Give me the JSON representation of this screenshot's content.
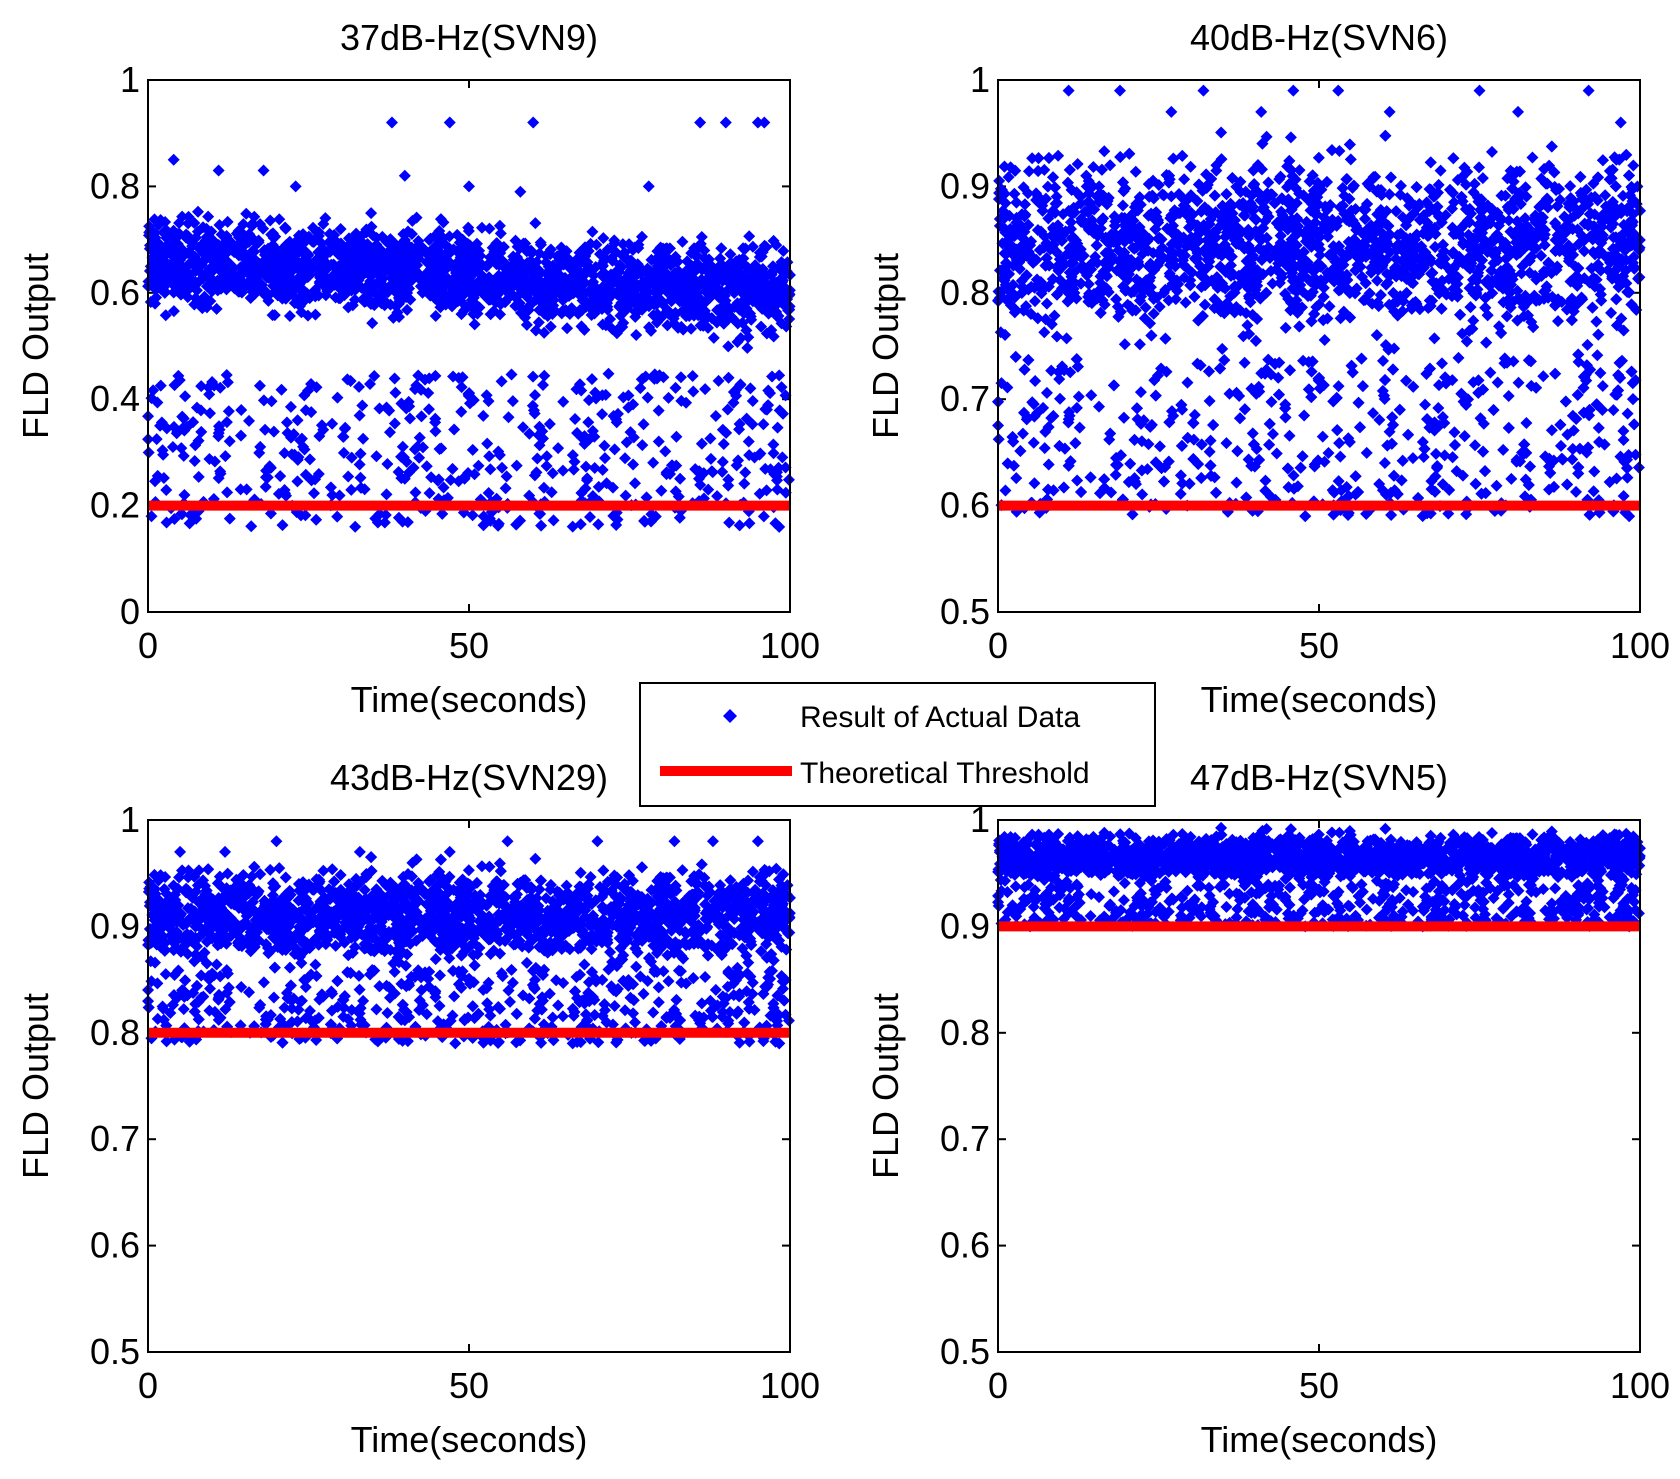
{
  "figure_layout": "2x2 grid of scatter plots with shared legend",
  "colors": {
    "data": "#0000ff",
    "threshold": "#ff0000",
    "axes": "#000000",
    "background": "#ffffff"
  },
  "legend": {
    "placement": "center",
    "entries": [
      {
        "label": "Result of Actual Data",
        "marker": "diamond-icon",
        "color": "#0000ff"
      },
      {
        "label": "Theoretical Threshold",
        "marker": "line-icon",
        "color": "#ff0000"
      }
    ]
  },
  "chart_data": [
    {
      "type": "scatter",
      "title": "37dB-Hz(SVN9)",
      "xlabel": "Time(seconds)",
      "ylabel": "FLD Output",
      "xlim": [
        0,
        100
      ],
      "ylim": [
        0,
        1
      ],
      "xticks": [
        0,
        50,
        100
      ],
      "xtick_labels": [
        "0",
        "50",
        "100"
      ],
      "yticks": [
        0,
        0.2,
        0.4,
        0.6,
        0.8,
        1
      ],
      "ytick_labels": [
        "0",
        "0.2",
        "0.4",
        "0.6",
        "0.8",
        "1"
      ],
      "grid": false,
      "threshold": 0.2,
      "band": {
        "start": [
          0.55,
          0.78
        ],
        "end": [
          0.48,
          0.72
        ]
      },
      "outlier_range": [
        0.16,
        0.45
      ],
      "outliers": [
        [
          38,
          0.92
        ],
        [
          47,
          0.92
        ],
        [
          60,
          0.92
        ],
        [
          86,
          0.92
        ],
        [
          90,
          0.92
        ],
        [
          95,
          0.92
        ],
        [
          96,
          0.92
        ],
        [
          4,
          0.85
        ],
        [
          11,
          0.83
        ],
        [
          18,
          0.83
        ],
        [
          23,
          0.8
        ],
        [
          40,
          0.82
        ],
        [
          50,
          0.8
        ],
        [
          58,
          0.79
        ],
        [
          78,
          0.8
        ]
      ],
      "series": [
        {
          "name": "Result of Actual Data",
          "kind": "scatter",
          "points": 2600
        },
        {
          "name": "Theoretical Threshold",
          "kind": "line",
          "x": [
            0,
            100
          ],
          "y": [
            0.2,
            0.2
          ]
        }
      ]
    },
    {
      "type": "scatter",
      "title": "40dB-Hz(SVN6)",
      "xlabel": "Time(seconds)",
      "ylabel": "FLD Output",
      "xlim": [
        0,
        100
      ],
      "ylim": [
        0.5,
        1
      ],
      "xticks": [
        0,
        50,
        100
      ],
      "xtick_labels": [
        "0",
        "50",
        "100"
      ],
      "yticks": [
        0.5,
        0.6,
        0.7,
        0.8,
        0.9,
        1
      ],
      "ytick_labels": [
        "0.5",
        "0.6",
        "0.7",
        "0.8",
        "0.9",
        "1"
      ],
      "grid": false,
      "threshold": 0.6,
      "band": {
        "start": [
          0.73,
          0.96
        ],
        "end": [
          0.73,
          0.96
        ]
      },
      "outlier_range": [
        0.59,
        0.74
      ],
      "outliers": [
        [
          11,
          0.99
        ],
        [
          19,
          0.99
        ],
        [
          32,
          0.99
        ],
        [
          46,
          0.99
        ],
        [
          53,
          0.99
        ],
        [
          75,
          0.99
        ],
        [
          92,
          0.99
        ],
        [
          27,
          0.97
        ],
        [
          41,
          0.97
        ],
        [
          61,
          0.97
        ],
        [
          81,
          0.97
        ],
        [
          97,
          0.96
        ]
      ],
      "series": [
        {
          "name": "Result of Actual Data",
          "kind": "scatter",
          "points": 3400
        },
        {
          "name": "Theoretical Threshold",
          "kind": "line",
          "x": [
            0,
            100
          ],
          "y": [
            0.6,
            0.6
          ]
        }
      ]
    },
    {
      "type": "scatter",
      "title": "43dB-Hz(SVN29)",
      "xlabel": "Time(seconds)",
      "ylabel": "FLD Output",
      "xlim": [
        0,
        100
      ],
      "ylim": [
        0.5,
        1
      ],
      "xticks": [
        0,
        50,
        100
      ],
      "xtick_labels": [
        "0",
        "50",
        "100"
      ],
      "yticks": [
        0.5,
        0.6,
        0.7,
        0.8,
        0.9,
        1
      ],
      "ytick_labels": [
        "0.5",
        "0.6",
        "0.7",
        "0.8",
        "0.9",
        "1"
      ],
      "grid": false,
      "threshold": 0.8,
      "band": {
        "start": [
          0.85,
          0.97
        ],
        "end": [
          0.85,
          0.97
        ]
      },
      "outlier_range": [
        0.79,
        0.86
      ],
      "outliers": [
        [
          5,
          0.97
        ],
        [
          12,
          0.97
        ],
        [
          20,
          0.98
        ],
        [
          33,
          0.97
        ],
        [
          47,
          0.97
        ],
        [
          56,
          0.98
        ],
        [
          70,
          0.98
        ],
        [
          82,
          0.98
        ],
        [
          88,
          0.98
        ],
        [
          95,
          0.98
        ]
      ],
      "series": [
        {
          "name": "Result of Actual Data",
          "kind": "scatter",
          "points": 2800
        },
        {
          "name": "Theoretical Threshold",
          "kind": "line",
          "x": [
            0,
            100
          ],
          "y": [
            0.8,
            0.8
          ]
        }
      ]
    },
    {
      "type": "scatter",
      "title": "47dB-Hz(SVN5)",
      "xlabel": "Time(seconds)",
      "ylabel": "FLD Output",
      "xlim": [
        0,
        100
      ],
      "ylim": [
        0.5,
        1
      ],
      "xticks": [
        0,
        50,
        100
      ],
      "xtick_labels": [
        "0",
        "50",
        "100"
      ],
      "yticks": [
        0.5,
        0.6,
        0.7,
        0.8,
        0.9,
        1
      ],
      "ytick_labels": [
        "0.5",
        "0.6",
        "0.7",
        "0.8",
        "0.9",
        "1"
      ],
      "grid": false,
      "threshold": 0.9,
      "band": {
        "start": [
          0.935,
          0.995
        ],
        "end": [
          0.935,
          0.995
        ]
      },
      "outlier_range": [
        0.9,
        0.94
      ],
      "outliers": [
        [
          5,
          0.9
        ],
        [
          34,
          0.905
        ],
        [
          78,
          0.905
        ],
        [
          99,
          0.905
        ]
      ],
      "series": [
        {
          "name": "Result of Actual Data",
          "kind": "scatter",
          "points": 2400
        },
        {
          "name": "Theoretical Threshold",
          "kind": "line",
          "x": [
            0,
            100
          ],
          "y": [
            0.9,
            0.9
          ]
        }
      ]
    }
  ]
}
